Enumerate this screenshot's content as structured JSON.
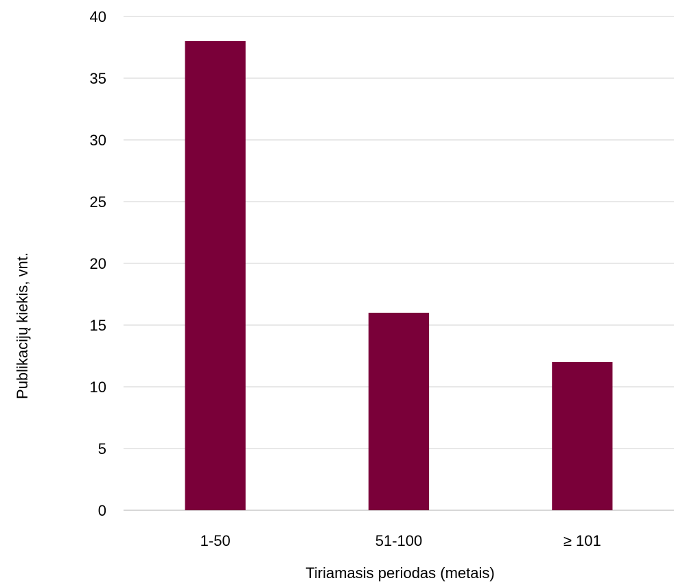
{
  "chart_data": {
    "type": "bar",
    "categories": [
      "1-50",
      "51-100",
      "≥ 101"
    ],
    "values": [
      38,
      16,
      12
    ],
    "xlabel": "Tiriamasis periodas (metais)",
    "ylabel": "Publikacijų kiekis, vnt.",
    "ylim": [
      0,
      40
    ],
    "yticks": [
      0,
      5,
      10,
      15,
      20,
      25,
      30,
      35,
      40
    ],
    "grid": true,
    "bar_color": "#7a0039"
  }
}
